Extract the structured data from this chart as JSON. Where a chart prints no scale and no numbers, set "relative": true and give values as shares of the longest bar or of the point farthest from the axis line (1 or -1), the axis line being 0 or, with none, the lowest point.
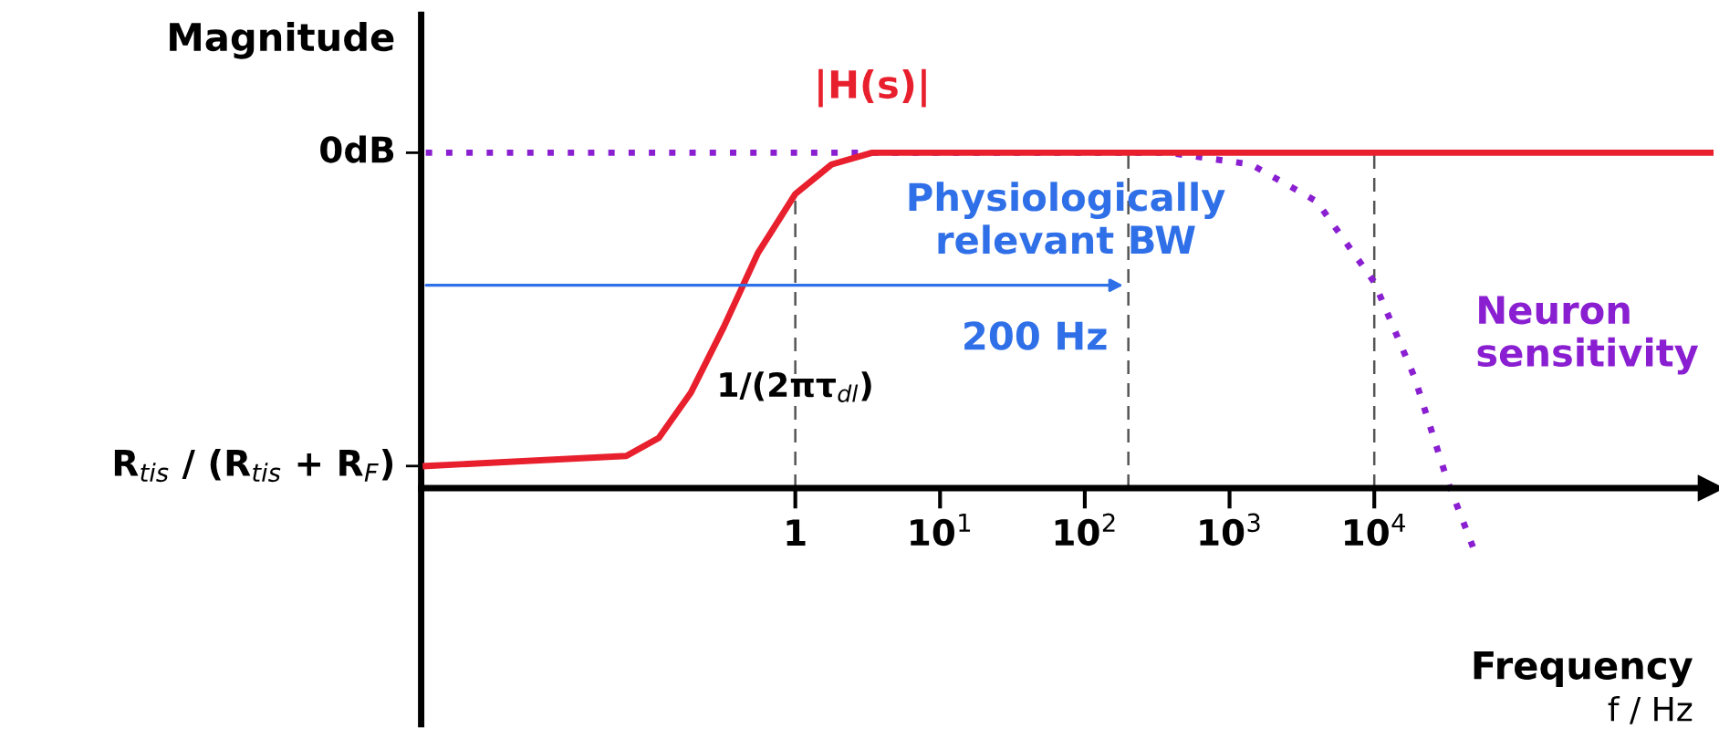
{
  "chart_data": {
    "type": "line",
    "relative": true,
    "ylabel": "Magnitude",
    "xlabel": "Frequency",
    "log": "x",
    "grid": false,
    "legend": false,
    "marker": "none",
    "xlim": [
      0.0026,
      2100000
    ],
    "xticks": [
      {
        "value": 1,
        "label": "1"
      },
      {
        "value": 10,
        "label": "10$^{1}$"
      },
      {
        "value": 100,
        "label": "10$^{2}$"
      },
      {
        "value": 1000,
        "label": "10$^{3}$"
      },
      {
        "value": 10000,
        "label": "10$^{4}$"
      }
    ],
    "series": [
      {
        "name": "|H(s)|",
        "color": "#e8202e",
        "line_style": "solid",
        "x": [
          0.0028,
          0.068,
          0.114,
          0.19,
          0.32,
          0.55,
          1,
          1.78,
          3.4,
          2100000
        ],
        "values": [
          0.066,
          0.096,
          0.15,
          0.285,
          0.48,
          0.7,
          0.877,
          0.965,
          1,
          1
        ]
      },
      {
        "name": "Neuron sensitivity",
        "color": "#8a1fd1",
        "line_style": "dotted",
        "x": [
          0.0028,
          380,
          1410,
          4000,
          10000,
          19000,
          32000,
          48000
        ],
        "values": [
          1,
          1,
          0.965,
          0.855,
          0.614,
          0.33,
          0.022,
          -0.175
        ]
      }
    ],
    "ref_lines": [
      {
        "axis": "x",
        "value": 1,
        "label": "1/(2πτ$_{dl}$)",
        "line_style": "dashed",
        "color": "#555555"
      },
      {
        "axis": "x",
        "value": 200,
        "line_style": "dashed",
        "color": "#555555"
      },
      {
        "axis": "x",
        "value": 10000,
        "line_style": "dashed",
        "color": "#555555"
      }
    ],
    "annotations": [
      "0dB",
      "R$_{tis}$ / (R$_{tis}$ + R$_{F}$)",
      {
        "text": "200 Hz",
        "x": 200,
        "y": 0.605
      },
      "Physiologically relevant BW",
      "f / Hz"
    ]
  }
}
